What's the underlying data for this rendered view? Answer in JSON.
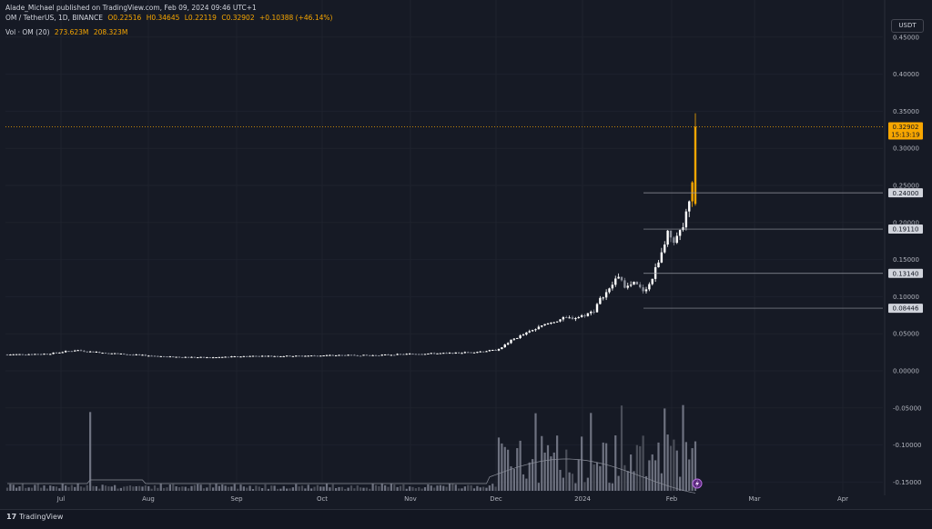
{
  "header": {
    "published": "Alade_Michael published on TradingView.com, Feb 09, 2024 09:46 UTC+1",
    "symbol": "OM / TetherUS, 1D, BINANCE",
    "open": "O0.22516",
    "high": "H0.34645",
    "low": "L0.22119",
    "close": "C0.32902",
    "change": "+0.10388 (+46.14%)",
    "volume_label": "Vol · OM (20)",
    "volume_value": "273.623M",
    "volume_ma": "208.323M"
  },
  "currency": "USDT",
  "footer": {
    "brand": "TradingView"
  },
  "colors": {
    "background": "#161a25",
    "accent": "#f7a600",
    "up": "#ffffff",
    "down": "#8a8e99",
    "grid": "#1e222d"
  },
  "chart_data": {
    "type": "candlestick",
    "y_ticks": [
      "0.45000",
      "0.40000",
      "0.35000",
      "0.30000",
      "0.25000",
      "0.20000",
      "0.15000",
      "0.10000",
      "0.05000",
      "0.00000",
      "-0.05000",
      "-0.10000",
      "-0.15000"
    ],
    "x_ticks": [
      "Jul",
      "Aug",
      "Sep",
      "Oct",
      "Nov",
      "Dec",
      "2024",
      "Feb",
      "Mar",
      "Apr"
    ],
    "ylim": [
      -0.16,
      0.46
    ],
    "last_price": {
      "value": 0.32902,
      "label": "0.32902",
      "countdown": "15:13:19"
    },
    "levels": [
      {
        "value": 0.24,
        "label": "0.24000"
      },
      {
        "value": 0.1911,
        "label": "0.19110"
      },
      {
        "value": 0.1314,
        "label": "0.13140"
      },
      {
        "value": 0.08446,
        "label": "0.08446"
      }
    ],
    "price_path": [
      [
        0.0,
        0.022
      ],
      [
        0.05,
        0.023
      ],
      [
        0.085,
        0.028
      ],
      [
        0.1,
        0.026
      ],
      [
        0.15,
        0.022
      ],
      [
        0.2,
        0.019
      ],
      [
        0.25,
        0.018
      ],
      [
        0.3,
        0.02
      ],
      [
        0.35,
        0.02
      ],
      [
        0.4,
        0.021
      ],
      [
        0.45,
        0.021
      ],
      [
        0.5,
        0.023
      ],
      [
        0.55,
        0.024
      ],
      [
        0.58,
        0.026
      ],
      [
        0.6,
        0.028
      ],
      [
        0.61,
        0.034
      ],
      [
        0.62,
        0.042
      ],
      [
        0.64,
        0.052
      ],
      [
        0.66,
        0.062
      ],
      [
        0.68,
        0.07
      ],
      [
        0.7,
        0.072
      ],
      [
        0.72,
        0.08
      ],
      [
        0.73,
        0.1
      ],
      [
        0.74,
        0.11
      ],
      [
        0.75,
        0.13
      ],
      [
        0.76,
        0.112
      ],
      [
        0.77,
        0.118
      ],
      [
        0.78,
        0.108
      ],
      [
        0.79,
        0.118
      ],
      [
        0.8,
        0.15
      ],
      [
        0.81,
        0.185
      ],
      [
        0.82,
        0.175
      ],
      [
        0.83,
        0.195
      ],
      [
        0.84,
        0.24
      ],
      [
        0.845,
        0.329
      ]
    ]
  }
}
